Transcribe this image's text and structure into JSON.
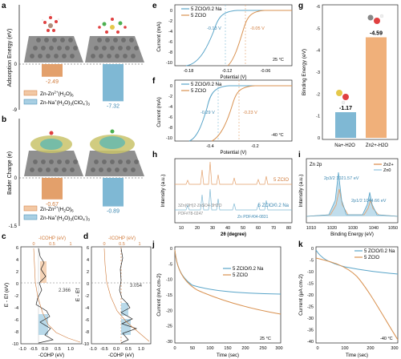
{
  "panel_letters": [
    "a",
    "b",
    "c",
    "d",
    "e",
    "f",
    "g",
    "h",
    "i",
    "j",
    "k"
  ],
  "colors": {
    "orange": "#e3a06b",
    "blue": "#7fb8d4",
    "blue_light": "#a8cfe3",
    "orange_light": "#f2c8a4",
    "zno": "#f0d9a8",
    "zn2": "#e3a06b",
    "zn0": "#a5cfe4"
  },
  "chart_data": [
    {
      "panel": "a",
      "type": "bar",
      "ylabel": "Adsorption Energy (eV)",
      "yticks": [
        "0",
        "-9"
      ],
      "ylim": [
        -9,
        0
      ],
      "categories": [
        "Zn-Zn2+(H2O)6",
        "Zn-Na+(H2O)3(ClO4-)3"
      ],
      "values": [
        -2.49,
        -7.32
      ],
      "value_labels": [
        "-2.49",
        "-7.32"
      ],
      "legend": [
        "Zn-Zn",
        "2+",
        "(H",
        "2",
        "O)",
        "6",
        "Zn-Na",
        "+",
        "(H",
        "2",
        "O)",
        "3",
        "(ClO",
        "4",
        "-",
        ")",
        "3"
      ]
    },
    {
      "panel": "b",
      "type": "bar",
      "ylabel": "Bader Charge (e)",
      "yticks": [
        "0",
        "-1.5"
      ],
      "ylim": [
        -1.5,
        0
      ],
      "categories": [
        "Zn-Zn2+(H2O)6",
        "Zn-Na+(H2O)3(ClO4-)3"
      ],
      "values": [
        -0.67,
        -0.89
      ],
      "value_labels": [
        "-0.67",
        "-0.89"
      ]
    },
    {
      "panel": "c",
      "type": "line",
      "ylabel": "E - Ef (eV)",
      "xlabel": "-COHP (eV)",
      "top_label": "-ICOHP (eV)",
      "xticks": [
        "-1.0",
        "-0.5",
        "0.0",
        "0.5",
        "1.0"
      ],
      "top_ticks": [
        "0",
        "0.5",
        "1"
      ],
      "yticks": [
        "6",
        "4",
        "2",
        "0",
        "-2",
        "-4",
        "-6",
        "-8",
        "-10"
      ],
      "ylim": [
        -10,
        6
      ],
      "annotation": "2.366"
    },
    {
      "panel": "d",
      "type": "line",
      "ylabel": "E - Ef",
      "xlabel": "-COHP (eV)",
      "top_label": "-ICOHP (eV)",
      "xticks": [
        "-1.0",
        "-0.5",
        "0.0",
        "0.5",
        "1.0"
      ],
      "top_ticks": [
        "0",
        "0.5",
        "1"
      ],
      "yticks": [
        "6",
        "4",
        "2",
        "0",
        "-2",
        "-4",
        "-6",
        "-8",
        "-10"
      ],
      "ylim": [
        -10,
        6
      ],
      "annotation": "3.054"
    },
    {
      "panel": "e",
      "type": "line",
      "ylabel": "Current (mA)",
      "xlabel": "Potential (V)",
      "xticks": [
        "-0.18",
        "-0.12",
        "-0.06"
      ],
      "yticks": [
        "0",
        "-2",
        "-4",
        "-6",
        "-8",
        "-10"
      ],
      "series": [
        {
          "name": "5 ZClO/0.2 Na"
        },
        {
          "name": "5 ZClO"
        }
      ],
      "annotations": [
        "-0.13 V",
        "-0.05 V",
        "25 °C"
      ]
    },
    {
      "panel": "f",
      "type": "line",
      "ylabel": "Current (mA)",
      "xlabel": "Potential (V)",
      "xticks": [
        "-0.4",
        "-0.2"
      ],
      "yticks": [
        "0",
        "-2",
        "-4",
        "-6",
        "-8",
        "-10"
      ],
      "series": [
        {
          "name": "5 ZClO/0.2 Na"
        },
        {
          "name": "5 ZClO"
        }
      ],
      "annotations": [
        "-0.29 V",
        "-0.23 V",
        "-40 °C"
      ]
    },
    {
      "panel": "g",
      "type": "bar",
      "ylabel": "Binding Energy (eV)",
      "yticks": [
        "-6",
        "-5",
        "-4",
        "-3",
        "-2",
        "-1",
        "0"
      ],
      "ylim": [
        -6,
        0
      ],
      "categories": [
        "Na+-H2O",
        "Zn2+-H2O"
      ],
      "values": [
        -1.17,
        -4.59
      ],
      "value_labels": [
        "-1.17",
        "-4.59"
      ]
    },
    {
      "panel": "h",
      "type": "line",
      "ylabel": "Intensity (a.u.)",
      "xlabel": "2θ (degree)",
      "xticks": [
        "10",
        "20",
        "30",
        "40",
        "50",
        "60",
        "70",
        "80"
      ],
      "series": [
        {
          "name": "5 ZClO"
        },
        {
          "name": "5 ZClO/0.2 Na"
        }
      ],
      "annotations": [
        "3Zn(OH)2·ZnSO4·3H2O",
        "PDF#78-0247",
        "Zn PDF#04-0831"
      ]
    },
    {
      "panel": "i",
      "type": "line",
      "ylabel": "Intensity (a.u.)",
      "xlabel": "Binding Energy (eV)",
      "xticks": [
        "1010",
        "1020",
        "1030",
        "1040",
        "1050"
      ],
      "title": "Zn 2p",
      "legend": [
        "Zn2+",
        "Zn0"
      ],
      "annotations": [
        "2p3/2 1021.57 eV",
        "2p1/2 1044.66 eV"
      ]
    },
    {
      "panel": "j",
      "type": "line",
      "ylabel": "Current (mA cm-2)",
      "xlabel": "Time (sec)",
      "xticks": [
        "0",
        "50",
        "100",
        "150",
        "200",
        "250",
        "300"
      ],
      "yticks": [
        "0",
        "-5",
        "-10",
        "-15",
        "-20",
        "-25",
        "-30"
      ],
      "ylim": [
        -30,
        0
      ],
      "series": [
        {
          "name": "5 ZClO/0.2 Na"
        },
        {
          "name": "5 ZClO"
        }
      ],
      "annotations": [
        "25 °C"
      ]
    },
    {
      "panel": "k",
      "type": "line",
      "ylabel": "Current (μA cm-2)",
      "xlabel": "Time (sec)",
      "xticks": [
        "0",
        "100",
        "200",
        "300"
      ],
      "yticks": [
        "0",
        "-5",
        "-10",
        "-15",
        "-20",
        "-25",
        "-30",
        "-35",
        "-40"
      ],
      "ylim": [
        -40,
        0
      ],
      "series": [
        {
          "name": "5 ZClO/0.2 Na"
        },
        {
          "name": "5 ZClO"
        }
      ],
      "annotations": [
        "-40 °C"
      ]
    }
  ]
}
